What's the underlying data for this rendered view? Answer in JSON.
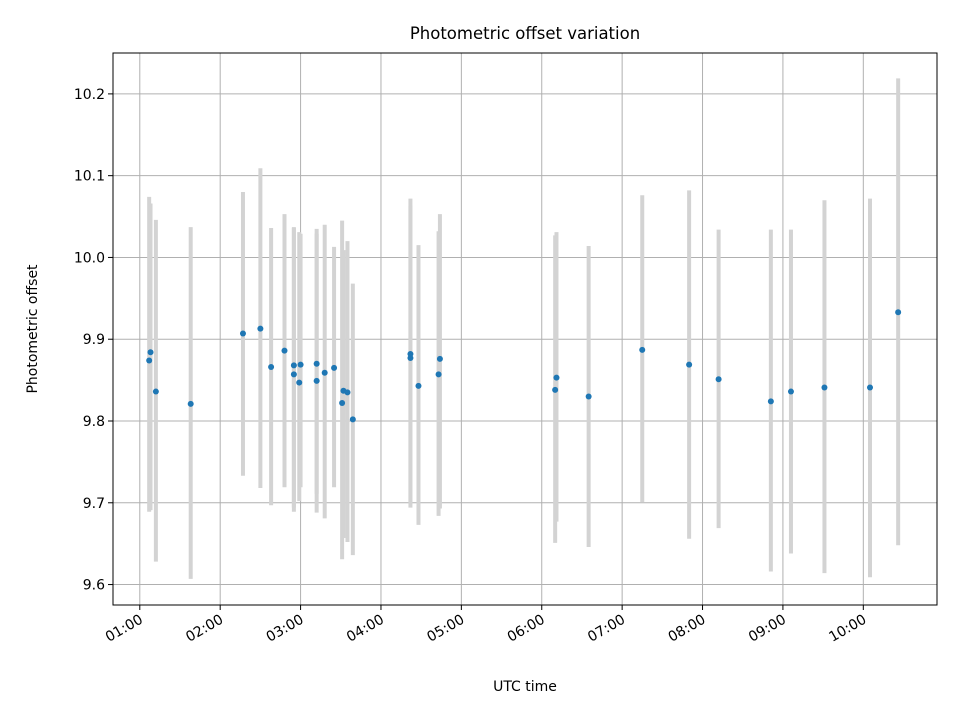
{
  "chart_data": {
    "type": "scatter",
    "title": "Photometric offset variation",
    "xlabel": "UTC time",
    "ylabel": "Photometric offset",
    "xlim": [
      "00:40",
      "10:55"
    ],
    "ylim": [
      9.575,
      10.25
    ],
    "x_ticks": [
      "01:00",
      "02:00",
      "03:00",
      "04:00",
      "05:00",
      "06:00",
      "07:00",
      "08:00",
      "09:00",
      "10:00"
    ],
    "y_ticks": [
      "9.6",
      "9.7",
      "9.8",
      "9.9",
      "10.0",
      "10.1",
      "10.2"
    ],
    "grid": true,
    "point_color": "#1f77b4",
    "errorbar_color": "#d3d3d3",
    "series": [
      {
        "points": [
          {
            "x": "01:07",
            "y": 9.874,
            "ylo": 9.689,
            "yhi": 10.074
          },
          {
            "x": "01:08",
            "y": 9.884,
            "ylo": 9.691,
            "yhi": 10.066
          },
          {
            "x": "01:12",
            "y": 9.836,
            "ylo": 9.628,
            "yhi": 10.046
          },
          {
            "x": "01:38",
            "y": 9.821,
            "ylo": 9.607,
            "yhi": 10.037
          },
          {
            "x": "02:17",
            "y": 9.907,
            "ylo": 9.733,
            "yhi": 10.08
          },
          {
            "x": "02:30",
            "y": 9.913,
            "ylo": 9.718,
            "yhi": 10.109
          },
          {
            "x": "02:38",
            "y": 9.866,
            "ylo": 9.697,
            "yhi": 10.036
          },
          {
            "x": "02:48",
            "y": 9.886,
            "ylo": 9.719,
            "yhi": 10.053
          },
          {
            "x": "02:55",
            "y": 9.857,
            "ylo": 9.689,
            "yhi": 10.036
          },
          {
            "x": "02:55",
            "y": 9.868,
            "ylo": 9.694,
            "yhi": 10.037
          },
          {
            "x": "02:59",
            "y": 9.847,
            "ylo": 9.702,
            "yhi": 10.031
          },
          {
            "x": "03:00",
            "y": 9.869,
            "ylo": 9.719,
            "yhi": 10.029
          },
          {
            "x": "03:12",
            "y": 9.849,
            "ylo": 9.688,
            "yhi": 10.035
          },
          {
            "x": "03:12",
            "y": 9.87,
            "ylo": 9.711,
            "yhi": 10.029
          },
          {
            "x": "03:18",
            "y": 9.859,
            "ylo": 9.681,
            "yhi": 10.04
          },
          {
            "x": "03:25",
            "y": 9.865,
            "ylo": 9.719,
            "yhi": 10.013
          },
          {
            "x": "03:31",
            "y": 9.822,
            "ylo": 9.631,
            "yhi": 10.045
          },
          {
            "x": "03:32",
            "y": 9.837,
            "ylo": 9.657,
            "yhi": 10.009
          },
          {
            "x": "03:35",
            "y": 9.835,
            "ylo": 9.652,
            "yhi": 10.02
          },
          {
            "x": "03:39",
            "y": 9.802,
            "ylo": 9.636,
            "yhi": 9.968
          },
          {
            "x": "04:22",
            "y": 9.877,
            "ylo": 9.694,
            "yhi": 10.072
          },
          {
            "x": "04:22",
            "y": 9.882,
            "ylo": 9.699,
            "yhi": 10.063
          },
          {
            "x": "04:28",
            "y": 9.843,
            "ylo": 9.673,
            "yhi": 10.015
          },
          {
            "x": "04:43",
            "y": 9.857,
            "ylo": 9.684,
            "yhi": 10.032
          },
          {
            "x": "04:44",
            "y": 9.876,
            "ylo": 9.693,
            "yhi": 10.053
          },
          {
            "x": "06:10",
            "y": 9.838,
            "ylo": 9.651,
            "yhi": 10.027
          },
          {
            "x": "06:11",
            "y": 9.853,
            "ylo": 9.677,
            "yhi": 10.031
          },
          {
            "x": "06:35",
            "y": 9.83,
            "ylo": 9.646,
            "yhi": 10.014
          },
          {
            "x": "07:15",
            "y": 9.887,
            "ylo": 9.701,
            "yhi": 10.076
          },
          {
            "x": "07:50",
            "y": 9.869,
            "ylo": 9.656,
            "yhi": 10.082
          },
          {
            "x": "08:12",
            "y": 9.851,
            "ylo": 9.669,
            "yhi": 10.034
          },
          {
            "x": "08:51",
            "y": 9.824,
            "ylo": 9.616,
            "yhi": 10.034
          },
          {
            "x": "09:06",
            "y": 9.836,
            "ylo": 9.638,
            "yhi": 10.034
          },
          {
            "x": "09:31",
            "y": 9.841,
            "ylo": 9.614,
            "yhi": 10.07
          },
          {
            "x": "10:05",
            "y": 9.841,
            "ylo": 9.609,
            "yhi": 10.072
          },
          {
            "x": "10:26",
            "y": 9.933,
            "ylo": 9.648,
            "yhi": 10.219
          }
        ]
      }
    ]
  }
}
